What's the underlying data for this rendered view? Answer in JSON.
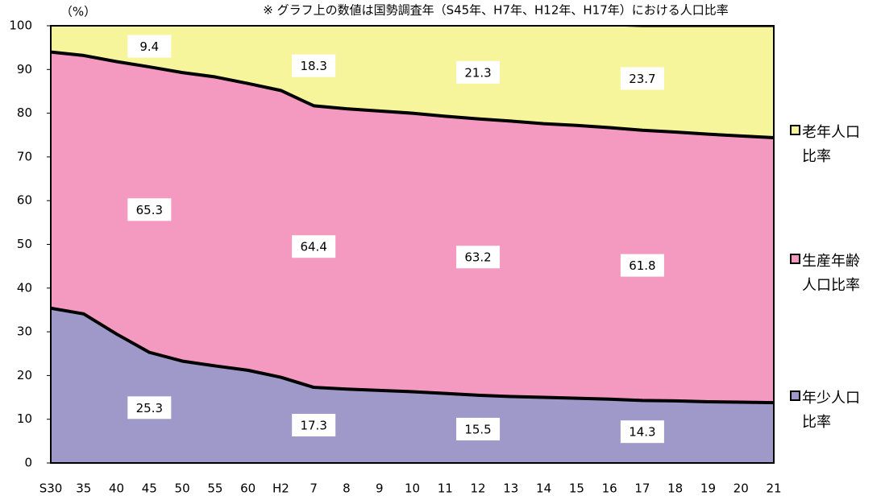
{
  "chart_data": {
    "type": "stacked_area",
    "y_label": "（%）",
    "note": "※ グラフ上の数値は国勢調査年（S45年、H7年、H12年、H17年）における人口比率",
    "categories": [
      "S30",
      "35",
      "40",
      "45",
      "50",
      "55",
      "60",
      "H2",
      "7",
      "8",
      "9",
      "10",
      "11",
      "12",
      "13",
      "14",
      "15",
      "16",
      "17",
      "18",
      "19",
      "20",
      "21"
    ],
    "series": [
      {
        "name": "年少人口比率",
        "color": "#9f99c9",
        "values": [
          35.4,
          34.1,
          29.5,
          25.3,
          23.3,
          22.2,
          21.2,
          19.6,
          17.3,
          16.9,
          16.6,
          16.3,
          15.9,
          15.5,
          15.2,
          15.0,
          14.8,
          14.6,
          14.3,
          14.2,
          14.0,
          13.9,
          13.8
        ],
        "value_labels": [
          null,
          null,
          null,
          "25.3",
          null,
          null,
          null,
          null,
          "17.3",
          null,
          null,
          null,
          null,
          "15.5",
          null,
          null,
          null,
          null,
          "14.3",
          null,
          null,
          null,
          null
        ]
      },
      {
        "name": "生産年齢人口比率",
        "color": "#f49ac1",
        "values": [
          58.6,
          59.1,
          62.3,
          65.3,
          66.0,
          66.1,
          65.6,
          65.6,
          64.4,
          64.1,
          63.9,
          63.7,
          63.4,
          63.2,
          63.0,
          62.6,
          62.4,
          62.1,
          61.8,
          61.5,
          61.2,
          60.9,
          60.6
        ],
        "value_labels": [
          null,
          null,
          null,
          "65.3",
          null,
          null,
          null,
          null,
          "64.4",
          null,
          null,
          null,
          null,
          "63.2",
          null,
          null,
          null,
          null,
          "61.8",
          null,
          null,
          null,
          null
        ]
      },
      {
        "name": "老年人口比率",
        "color": "#f7f59b",
        "values": [
          6.0,
          6.8,
          8.2,
          9.4,
          10.7,
          11.7,
          13.2,
          14.8,
          18.3,
          19.0,
          19.5,
          20.0,
          20.7,
          21.3,
          21.8,
          22.4,
          22.8,
          23.3,
          23.7,
          24.1,
          24.6,
          25.0,
          25.4
        ],
        "value_labels": [
          null,
          null,
          null,
          "9.4",
          null,
          null,
          null,
          null,
          "18.3",
          null,
          null,
          null,
          null,
          "21.3",
          null,
          null,
          null,
          null,
          "23.7",
          null,
          null,
          null,
          null
        ]
      }
    ],
    "ylim": [
      0,
      100
    ],
    "yticks": [
      0,
      10,
      20,
      30,
      40,
      50,
      60,
      70,
      80,
      90,
      100
    ],
    "grid": false
  }
}
